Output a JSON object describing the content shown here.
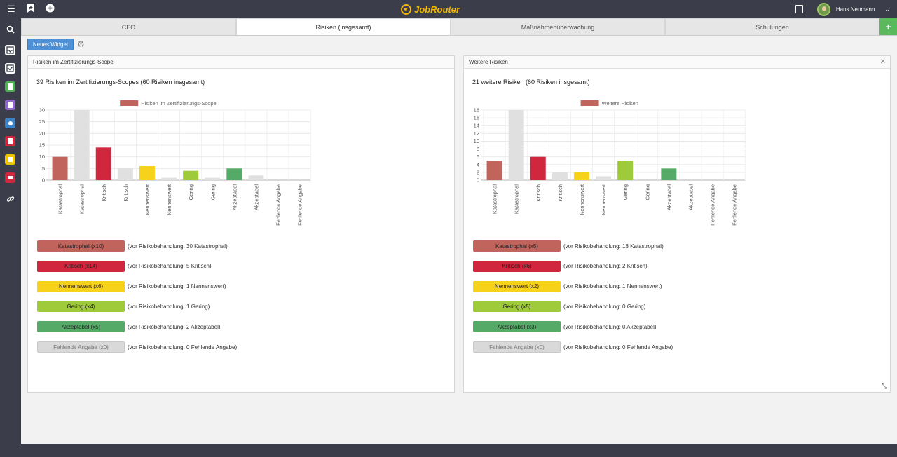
{
  "app": {
    "logo_text": "JobRouter",
    "user_name": "Hans Neumann"
  },
  "tabs": [
    {
      "label": "CEO"
    },
    {
      "label": "Risiken (insgesamt)"
    },
    {
      "label": "Maßnahmenüberwachung"
    },
    {
      "label": "Schulungen"
    }
  ],
  "toolbar": {
    "new_widget": "Neues Widget"
  },
  "colors": {
    "katastrophal": "#c0645c",
    "kritisch": "#d0263e",
    "nennenswert": "#f7d21a",
    "gering": "#9fca3a",
    "akzeptabel": "#55aa68",
    "fehlend": "#d9d9d9",
    "gray": "#e0e0e0"
  },
  "panels": [
    {
      "header": "Risiken im Zertifizierungs-Scope",
      "title": "39 Risiken im Zertifizierungs-Scopes (60 Risiken insgesamt)",
      "legends": [
        {
          "badge": "Katastrophal (x10)",
          "note": "(vor Risikobehandlung: 30 Katastrophal)",
          "color": "#c0645c"
        },
        {
          "badge": "Kritisch (x14)",
          "note": "(vor Risikobehandlung: 5 Kritisch)",
          "color": "#d0263e"
        },
        {
          "badge": "Nennenswert (x6)",
          "note": "(vor Risikobehandlung: 1 Nennenswert)",
          "color": "#f7d21a"
        },
        {
          "badge": "Gering (x4)",
          "note": "(vor Risikobehandlung: 1 Gering)",
          "color": "#9fca3a"
        },
        {
          "badge": "Akzeptabel (x5)",
          "note": "(vor Risikobehandlung: 2 Akzeptabel)",
          "color": "#55aa68"
        },
        {
          "badge": "Fehlende Angabe (x0)",
          "note": "(vor Risikobehandlung: 0 Fehlende Angabe)",
          "color": "#d9d9d9"
        }
      ]
    },
    {
      "header": "Weitere Risiken",
      "title": "21 weitere Risiken (60 Risiken insgesamt)",
      "legends": [
        {
          "badge": "Katastrophal (x5)",
          "note": "(vor Risikobehandlung: 18 Katastrophal)",
          "color": "#c0645c"
        },
        {
          "badge": "Kritisch (x6)",
          "note": "(vor Risikobehandlung: 2 Kritisch)",
          "color": "#d0263e"
        },
        {
          "badge": "Nennenswert (x2)",
          "note": "(vor Risikobehandlung: 1 Nennenswert)",
          "color": "#f7d21a"
        },
        {
          "badge": "Gering (x5)",
          "note": "(vor Risikobehandlung: 0 Gering)",
          "color": "#9fca3a"
        },
        {
          "badge": "Akzeptabel (x3)",
          "note": "(vor Risikobehandlung: 0 Akzeptabel)",
          "color": "#55aa68"
        },
        {
          "badge": "Fehlende Angabe (x0)",
          "note": "(vor Risikobehandlung: 0 Fehlende Angabe)",
          "color": "#d9d9d9"
        }
      ]
    }
  ],
  "chart_data": [
    {
      "type": "bar",
      "legend": "Risiken im Zertifizierungs-Scope",
      "categories": [
        "Katastrophal",
        "Katastrophal",
        "Kritisch",
        "Kritisch",
        "Nennenswert",
        "Nennenswert",
        "Gering",
        "Gering",
        "Akzeptabel",
        "Akzeptabel",
        "Fehlende Angabe",
        "Fehlende Angabe"
      ],
      "values": [
        10,
        30,
        14,
        5,
        6,
        1,
        4,
        1,
        5,
        2,
        0,
        0
      ],
      "bar_colors": [
        "#c0645c",
        "#e0e0e0",
        "#d0263e",
        "#e0e0e0",
        "#f7d21a",
        "#e0e0e0",
        "#9fca3a",
        "#e0e0e0",
        "#55aa68",
        "#e0e0e0",
        "#d9d9d9",
        "#e0e0e0"
      ],
      "yticks": [
        0,
        5,
        10,
        15,
        20,
        25,
        30
      ],
      "ylim": [
        0,
        30
      ]
    },
    {
      "type": "bar",
      "legend": "Weitere Risiken",
      "categories": [
        "Katastrophal",
        "Katastrophal",
        "Kritisch",
        "Kritisch",
        "Nennenswert",
        "Nennenswert",
        "Gering",
        "Gering",
        "Akzeptabel",
        "Akzeptabel",
        "Fehlende Angabe",
        "Fehlende Angabe"
      ],
      "values": [
        5,
        18,
        6,
        2,
        2,
        1,
        5,
        0,
        3,
        0,
        0,
        0
      ],
      "bar_colors": [
        "#c0645c",
        "#e0e0e0",
        "#d0263e",
        "#e0e0e0",
        "#f7d21a",
        "#e0e0e0",
        "#9fca3a",
        "#e0e0e0",
        "#55aa68",
        "#e0e0e0",
        "#d9d9d9",
        "#e0e0e0"
      ],
      "yticks": [
        0,
        2,
        4,
        6,
        8,
        10,
        12,
        14,
        16,
        18
      ],
      "ylim": [
        0,
        18
      ]
    }
  ]
}
